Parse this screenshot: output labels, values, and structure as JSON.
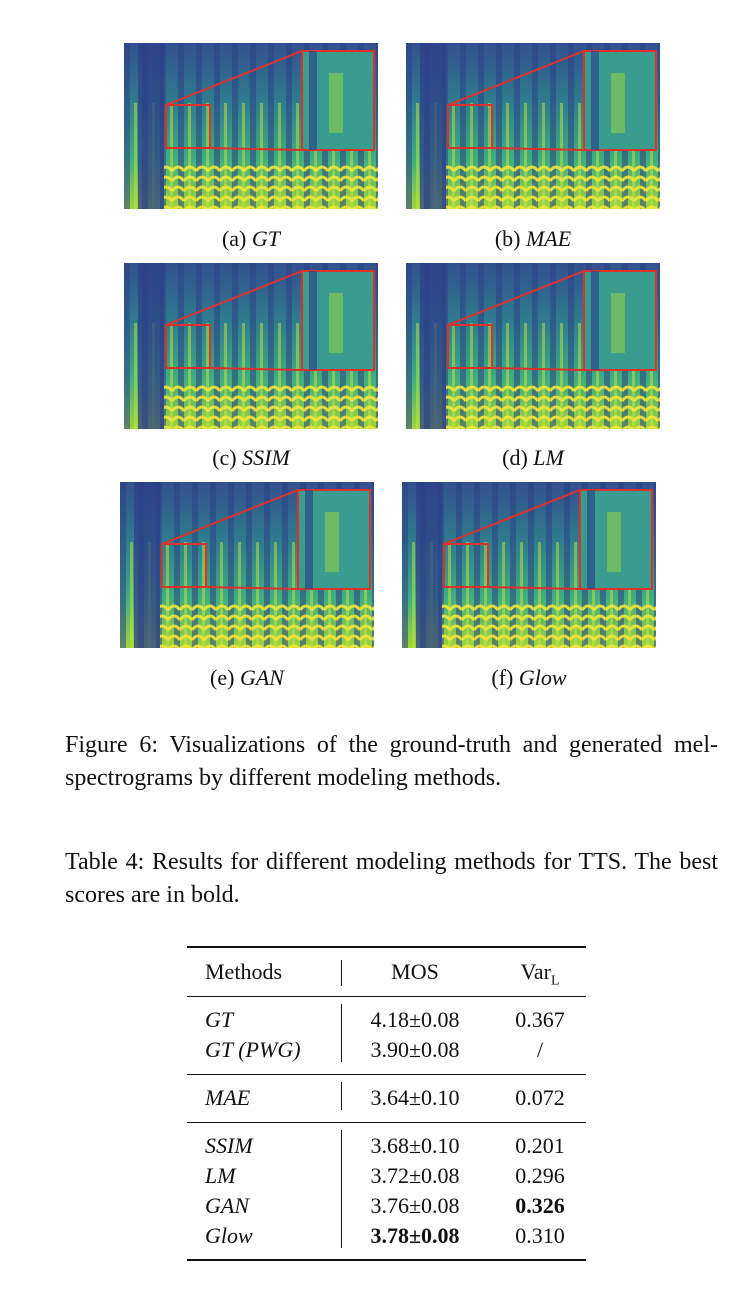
{
  "figure": {
    "panels": [
      {
        "label": "(a)",
        "name": "GT"
      },
      {
        "label": "(b)",
        "name": "MAE"
      },
      {
        "label": "(c)",
        "name": "SSIM"
      },
      {
        "label": "(d)",
        "name": "LM"
      },
      {
        "label": "(e)",
        "name": "GAN"
      },
      {
        "label": "(f)",
        "name": "Glow"
      }
    ],
    "caption": "Figure 6: Visualizations of the ground-truth and generated mel-spectrograms by different modeling methods."
  },
  "table": {
    "caption": "Table 4: Results for different modeling methods for TTS. The best scores are in bold.",
    "header": {
      "methods": "Methods",
      "mos": "MOS",
      "var": {
        "base": "Var",
        "sub": "L"
      }
    },
    "groups": [
      [
        [
          "GT",
          "4.18±0.08",
          "0.367"
        ],
        [
          "GT (PWG)",
          "3.90±0.08",
          "/"
        ]
      ],
      [
        [
          "MAE",
          "3.64±0.10",
          "0.072"
        ]
      ],
      [
        [
          "SSIM",
          "3.68±0.10",
          "0.201"
        ],
        [
          "LM",
          "3.72±0.08",
          "0.296"
        ],
        [
          "GAN",
          "3.76±0.08",
          {
            "text": "0.326",
            "bold": true
          }
        ],
        [
          "Glow",
          {
            "text": "3.78±0.08",
            "bold": true
          },
          "0.310"
        ]
      ]
    ]
  }
}
